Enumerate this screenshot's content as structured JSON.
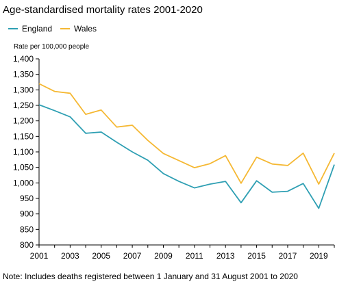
{
  "subtitle": "Age-standardised mortality rates 2001-2020",
  "note": "Note: Includes deaths registered between 1 January and 31 August 2001 to 2020",
  "chart_data": {
    "type": "line",
    "ylabel": "Rate per 100,000 people",
    "xlabel": "",
    "x": [
      2001,
      2002,
      2003,
      2004,
      2005,
      2006,
      2007,
      2008,
      2009,
      2010,
      2011,
      2012,
      2013,
      2014,
      2015,
      2016,
      2017,
      2018,
      2019,
      2020
    ],
    "xticks": [
      "2001",
      "2003",
      "2005",
      "2007",
      "2009",
      "2011",
      "2013",
      "2015",
      "2017",
      "2019"
    ],
    "ylim": [
      800,
      1400
    ],
    "yticks": [
      "800",
      "850",
      "900",
      "950",
      "1,000",
      "1,050",
      "1,100",
      "1,150",
      "1,200",
      "1,250",
      "1,300",
      "1,350",
      "1,400"
    ],
    "legend_position": "top-left",
    "grid": false,
    "series": [
      {
        "name": "England",
        "color": "#2E9FB3",
        "values": [
          1252,
          1233,
          1213,
          1160,
          1164,
          1131,
          1100,
          1073,
          1030,
          1005,
          984,
          996,
          1005,
          936,
          1007,
          970,
          973,
          998,
          918,
          1059
        ]
      },
      {
        "name": "Wales",
        "color": "#F5B833",
        "values": [
          1320,
          1295,
          1289,
          1221,
          1235,
          1180,
          1186,
          1137,
          1095,
          1072,
          1049,
          1062,
          1088,
          999,
          1083,
          1061,
          1056,
          1096,
          996,
          1096
        ]
      }
    ]
  }
}
